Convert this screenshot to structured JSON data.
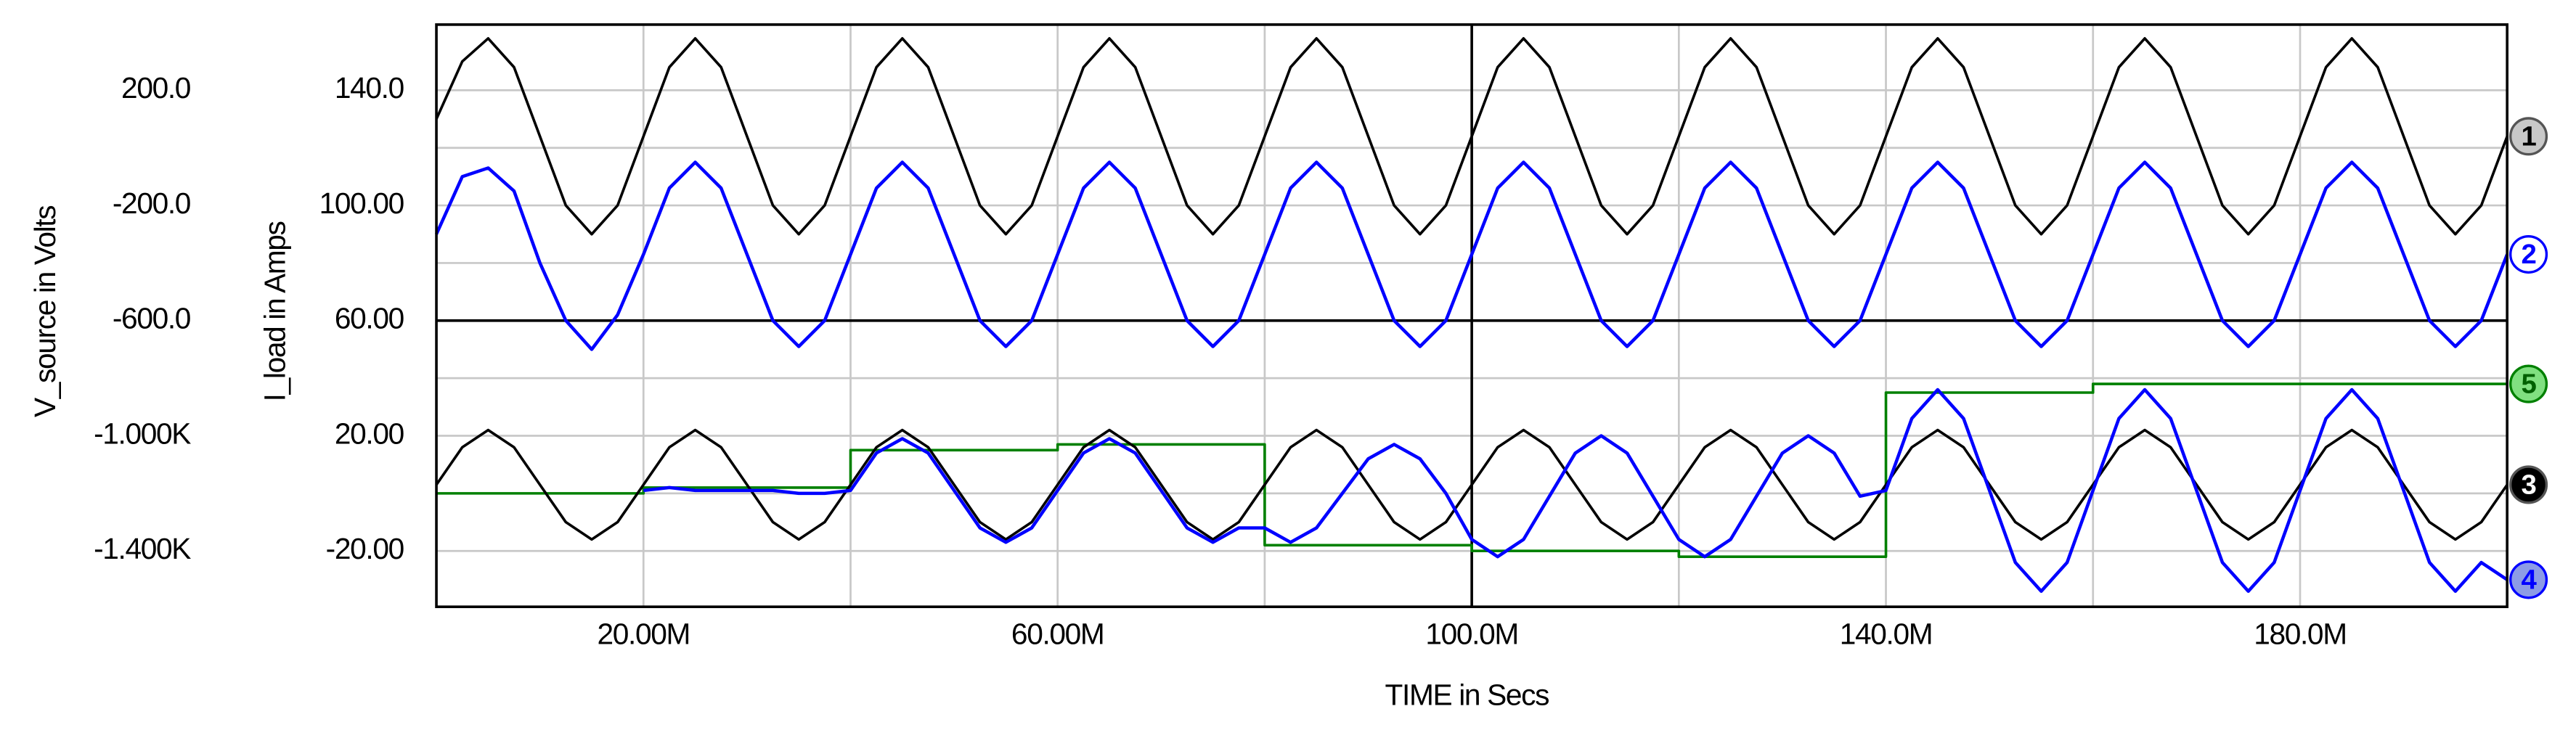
{
  "chart_data": {
    "type": "line",
    "xlabel": "TIME in Secs",
    "ylabel": "I_load in Amps",
    "y2label": "V_source in Volts",
    "xlim": [
      0,
      0.2
    ],
    "ylim": [
      -39.4,
      162.8
    ],
    "y2lim": [
      -1593.6,
      427.8
    ],
    "xticks": [
      {
        "value": 0.02,
        "label": "20.00M"
      },
      {
        "value": 0.06,
        "label": "60.00M"
      },
      {
        "value": 0.1,
        "label": "100.0M"
      },
      {
        "value": 0.14,
        "label": "140.0M"
      },
      {
        "value": 0.18,
        "label": "180.0M"
      }
    ],
    "xminor": [
      0.04,
      0.08,
      0.12,
      0.16
    ],
    "yticks": [
      {
        "value": 140,
        "label": "140.0"
      },
      {
        "value": 100,
        "label": "100.00"
      },
      {
        "value": 60,
        "label": "60.00"
      },
      {
        "value": 20,
        "label": "20.00"
      },
      {
        "value": -20,
        "label": "-20.00"
      }
    ],
    "yminor": [
      120,
      80,
      40,
      0
    ],
    "y2ticks": [
      {
        "value": 200,
        "label": "200.0"
      },
      {
        "value": -200,
        "label": "-200.0"
      },
      {
        "value": -600,
        "label": "-600.0"
      },
      {
        "value": -1000,
        "label": "-1.000K"
      },
      {
        "value": -1400,
        "label": "-1.400K"
      }
    ],
    "grid": true,
    "axis_cross": [
      0.1,
      60
    ],
    "x": [
      0,
      0.0025,
      0.005,
      0.0075,
      0.01,
      0.0125,
      0.015,
      0.0175,
      0.02,
      0.0225,
      0.025,
      0.0275,
      0.03,
      0.0325,
      0.035,
      0.0375,
      0.04,
      0.0425,
      0.045,
      0.0475,
      0.05,
      0.0525,
      0.055,
      0.0575,
      0.06,
      0.0625,
      0.065,
      0.0675,
      0.07,
      0.0725,
      0.075,
      0.0775,
      0.08,
      0.0825,
      0.085,
      0.0875,
      0.09,
      0.0925,
      0.095,
      0.0975,
      0.1,
      0.1025,
      0.105,
      0.1075,
      0.11,
      0.1125,
      0.115,
      0.1175,
      0.12,
      0.1225,
      0.125,
      0.1275,
      0.13,
      0.1325,
      0.135,
      0.1375,
      0.14,
      0.1425,
      0.145,
      0.1475,
      0.15,
      0.1525,
      0.155,
      0.1575,
      0.16,
      0.1625,
      0.165,
      0.1675,
      0.17,
      0.1725,
      0.175,
      0.1775,
      0.18,
      0.1825,
      0.185,
      0.1875,
      0.19,
      0.1925,
      0.195,
      0.1975,
      0.2
    ],
    "series": [
      {
        "name": "1",
        "color": "#000000",
        "marker_fill": "#c8c8c8",
        "label_color": "#000000",
        "values": [
          130,
          150,
          158,
          148,
          124,
          100,
          90,
          100,
          124,
          148,
          158,
          148,
          124,
          100,
          90,
          100,
          124,
          148,
          158,
          148,
          124,
          100,
          90,
          100,
          124,
          148,
          158,
          148,
          124,
          100,
          90,
          100,
          124,
          148,
          158,
          148,
          124,
          100,
          90,
          100,
          124,
          148,
          158,
          148,
          124,
          100,
          90,
          100,
          124,
          148,
          158,
          148,
          124,
          100,
          90,
          100,
          124,
          148,
          158,
          148,
          124,
          100,
          90,
          100,
          124,
          148,
          158,
          148,
          124,
          100,
          90,
          100,
          124,
          148,
          158,
          148,
          124,
          100,
          90,
          100,
          124
        ]
      },
      {
        "name": "2",
        "color": "#0000ff",
        "marker_fill": "#ffffff",
        "label_color": "#0000ff",
        "values": [
          90,
          110,
          113,
          105,
          80,
          60,
          50,
          62,
          83,
          106,
          115,
          106,
          83,
          60,
          51,
          60,
          83,
          106,
          115,
          106,
          83,
          60,
          51,
          60,
          83,
          106,
          115,
          106,
          83,
          60,
          51,
          60,
          83,
          106,
          115,
          106,
          83,
          60,
          51,
          60,
          83,
          106,
          115,
          106,
          83,
          60,
          51,
          60,
          83,
          106,
          115,
          106,
          83,
          60,
          51,
          60,
          83,
          106,
          115,
          106,
          83,
          60,
          51,
          60,
          83,
          106,
          115,
          106,
          83,
          60,
          51,
          60,
          83,
          106,
          115,
          106,
          83,
          60,
          51,
          60,
          83
        ]
      },
      {
        "name": "5",
        "color": "#008000",
        "marker_fill": "#80e080",
        "label_color": "#006000",
        "x": [
          0,
          0.02,
          0.02,
          0.04,
          0.04,
          0.06,
          0.06,
          0.08,
          0.08,
          0.1,
          0.1,
          0.12,
          0.12,
          0.14,
          0.14,
          0.16,
          0.16,
          0.2
        ],
        "values": [
          0,
          0,
          2,
          2,
          15,
          15,
          17,
          17,
          -18,
          -18,
          -20,
          -20,
          -22,
          -22,
          35,
          35,
          38,
          38
        ]
      },
      {
        "name": "3",
        "color": "#000000",
        "marker_fill": "#000000",
        "label_color": "#ffffff",
        "values": [
          3,
          16,
          22,
          16,
          3,
          -10,
          -16,
          -10,
          3,
          16,
          22,
          16,
          3,
          -10,
          -16,
          -10,
          3,
          16,
          22,
          16,
          3,
          -10,
          -16,
          -10,
          3,
          16,
          22,
          16,
          3,
          -10,
          -16,
          -10,
          3,
          16,
          22,
          16,
          3,
          -10,
          -16,
          -10,
          3,
          16,
          22,
          16,
          3,
          -10,
          -16,
          -10,
          3,
          16,
          22,
          16,
          3,
          -10,
          -16,
          -10,
          3,
          16,
          22,
          16,
          3,
          -10,
          -16,
          -10,
          3,
          16,
          22,
          16,
          3,
          -10,
          -16,
          -10,
          3,
          16,
          22,
          16,
          3,
          -10,
          -16,
          -10,
          3
        ]
      },
      {
        "name": "4",
        "color": "#0000ff",
        "marker_fill": "#8c9be6",
        "label_color": "#0000ff",
        "values": [
          null,
          null,
          null,
          null,
          null,
          null,
          null,
          null,
          1,
          2,
          1,
          1,
          1,
          1,
          0,
          0,
          1,
          14,
          19,
          14,
          1,
          -12,
          -17,
          -12,
          1,
          14,
          19,
          14,
          1,
          -12,
          -17,
          -12,
          -12,
          -17,
          -12,
          0,
          12,
          17,
          12,
          0,
          -16,
          -22,
          -16,
          -1,
          14,
          20,
          14,
          -1,
          -16,
          -22,
          -16,
          -1,
          14,
          20,
          14,
          -1,
          1,
          26,
          36,
          26,
          1,
          -24,
          -34,
          -24,
          1,
          26,
          36,
          26,
          1,
          -24,
          -34,
          -24,
          1,
          26,
          36,
          26,
          1,
          -24,
          -34,
          -24,
          -30
        ]
      }
    ]
  }
}
